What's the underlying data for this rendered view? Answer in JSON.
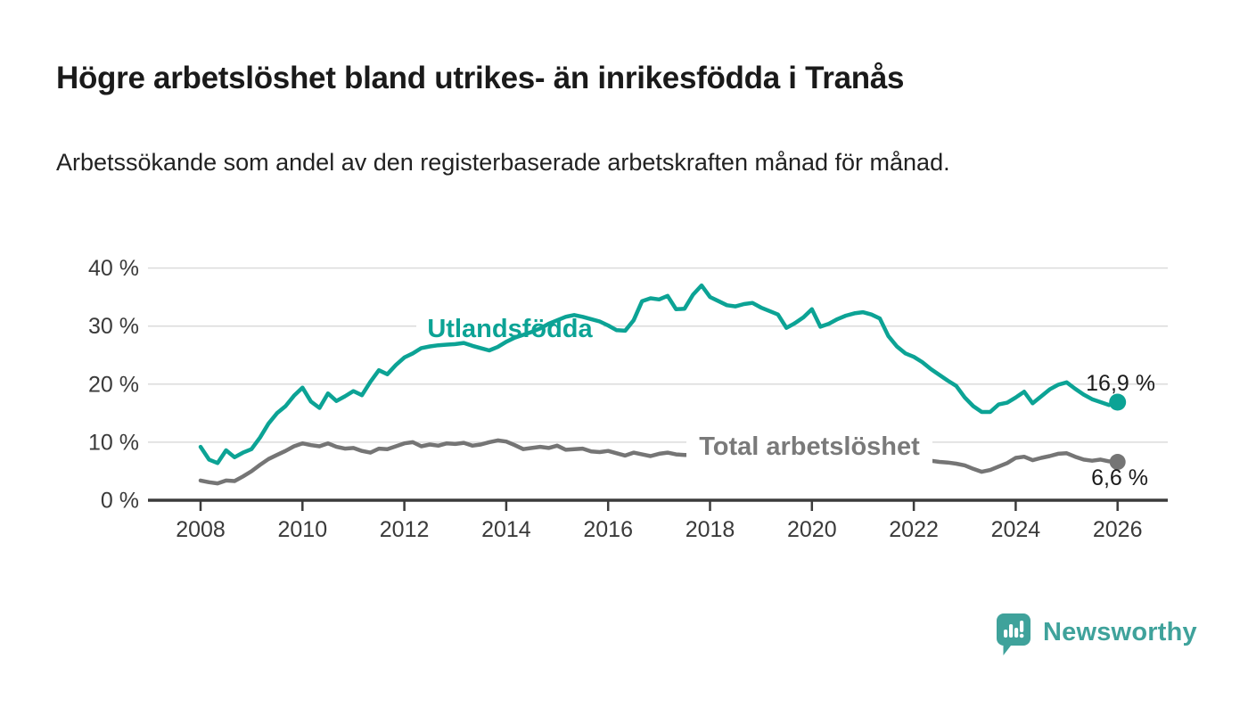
{
  "header": {
    "title": "Högre arbetslöshet bland utrikes- än inrikesfödda i Tranås",
    "subtitle": "Arbetssökande som andel av den registerbaserade arbetskraften månad för månad."
  },
  "chart_data": {
    "type": "line",
    "title": "Högre arbetslöshet bland utrikes- än inrikesfödda i Tranås",
    "xlabel": "",
    "ylabel": "Arbetssökande som andel av den registerbaserade arbetskraften",
    "x_start_year": 2008,
    "x_end_year": 2026,
    "points_per_year": 6,
    "x_ticks": [
      2008,
      2010,
      2012,
      2014,
      2016,
      2018,
      2020,
      2022,
      2024,
      2026
    ],
    "y_ticks": [
      {
        "label": "0 %",
        "value": 0
      },
      {
        "label": "10 %",
        "value": 10
      },
      {
        "label": "20 %",
        "value": 20
      },
      {
        "label": "30 %",
        "value": 30
      },
      {
        "label": "40 %",
        "value": 40
      }
    ],
    "ylim": [
      0,
      42
    ],
    "grid": "horizontal",
    "legend_position": "inline-labels",
    "series": [
      {
        "name": "Utlandsfödda",
        "color": "#0ca395",
        "end_label": "16,9 %",
        "end_value": 16.9,
        "values": [
          9.2,
          7.0,
          6.4,
          8.6,
          7.4,
          8.2,
          8.8,
          10.8,
          13.2,
          15.0,
          16.2,
          18.0,
          19.4,
          17.0,
          15.9,
          18.4,
          17.1,
          17.9,
          18.8,
          18.1,
          20.4,
          22.4,
          21.7,
          23.3,
          24.6,
          25.3,
          26.2,
          26.5,
          26.7,
          26.8,
          26.9,
          27.1,
          26.6,
          26.2,
          25.8,
          26.4,
          27.3,
          28.0,
          28.5,
          29.0,
          29.6,
          30.4,
          31.0,
          31.6,
          31.9,
          31.6,
          31.2,
          30.8,
          30.1,
          29.3,
          29.2,
          31.0,
          34.3,
          34.8,
          34.6,
          35.2,
          32.9,
          33.0,
          35.4,
          37.0,
          35.0,
          34.3,
          33.6,
          33.4,
          33.8,
          34.0,
          33.2,
          32.6,
          32.0,
          29.7,
          30.5,
          31.5,
          32.9,
          29.9,
          30.4,
          31.2,
          31.8,
          32.2,
          32.4,
          32.0,
          31.3,
          28.3,
          26.5,
          25.3,
          24.7,
          23.8,
          22.6,
          21.6,
          20.6,
          19.7,
          17.7,
          16.2,
          15.2,
          15.2,
          16.5,
          16.8,
          17.7,
          18.7,
          16.7,
          17.9,
          19.1,
          19.9,
          20.3,
          19.2,
          18.2,
          17.4,
          16.9,
          16.4,
          16.9
        ]
      },
      {
        "name": "Total arbetslöshet",
        "color": "#757575",
        "end_label": "6,6 %",
        "end_value": 6.6,
        "values": [
          3.4,
          3.1,
          2.9,
          3.4,
          3.3,
          4.1,
          5.0,
          6.1,
          7.1,
          7.8,
          8.5,
          9.3,
          9.8,
          9.5,
          9.3,
          9.8,
          9.2,
          8.9,
          9.0,
          8.5,
          8.2,
          8.9,
          8.8,
          9.3,
          9.8,
          10.0,
          9.3,
          9.6,
          9.4,
          9.8,
          9.7,
          9.9,
          9.4,
          9.6,
          10.0,
          10.3,
          10.1,
          9.5,
          8.8,
          9.0,
          9.2,
          9.0,
          9.4,
          8.7,
          8.8,
          8.9,
          8.4,
          8.3,
          8.5,
          8.1,
          7.7,
          8.2,
          7.9,
          7.6,
          8.0,
          8.2,
          7.9,
          7.8,
          7.8,
          7.9,
          8.0,
          7.9,
          7.8,
          7.8,
          7.7,
          7.6,
          7.5,
          7.4,
          7.4,
          7.3,
          7.3,
          7.2,
          7.3,
          7.5,
          7.7,
          7.8,
          7.7,
          7.5,
          7.4,
          7.3,
          7.2,
          7.1,
          7.0,
          6.9,
          6.9,
          6.9,
          6.8,
          6.6,
          6.5,
          6.3,
          6.0,
          5.4,
          4.9,
          5.2,
          5.8,
          6.4,
          7.3,
          7.5,
          6.9,
          7.3,
          7.6,
          8.0,
          8.1,
          7.5,
          7.0,
          6.8,
          7.0,
          6.7,
          6.6
        ]
      }
    ]
  },
  "footer": {
    "brand": "Newsworthy"
  },
  "colors": {
    "accent_teal": "#0ca395",
    "line_gray": "#757575",
    "logo_teal": "#3fa29b",
    "gridline": "#dbdbdb",
    "axis": "#3c3c3c"
  }
}
